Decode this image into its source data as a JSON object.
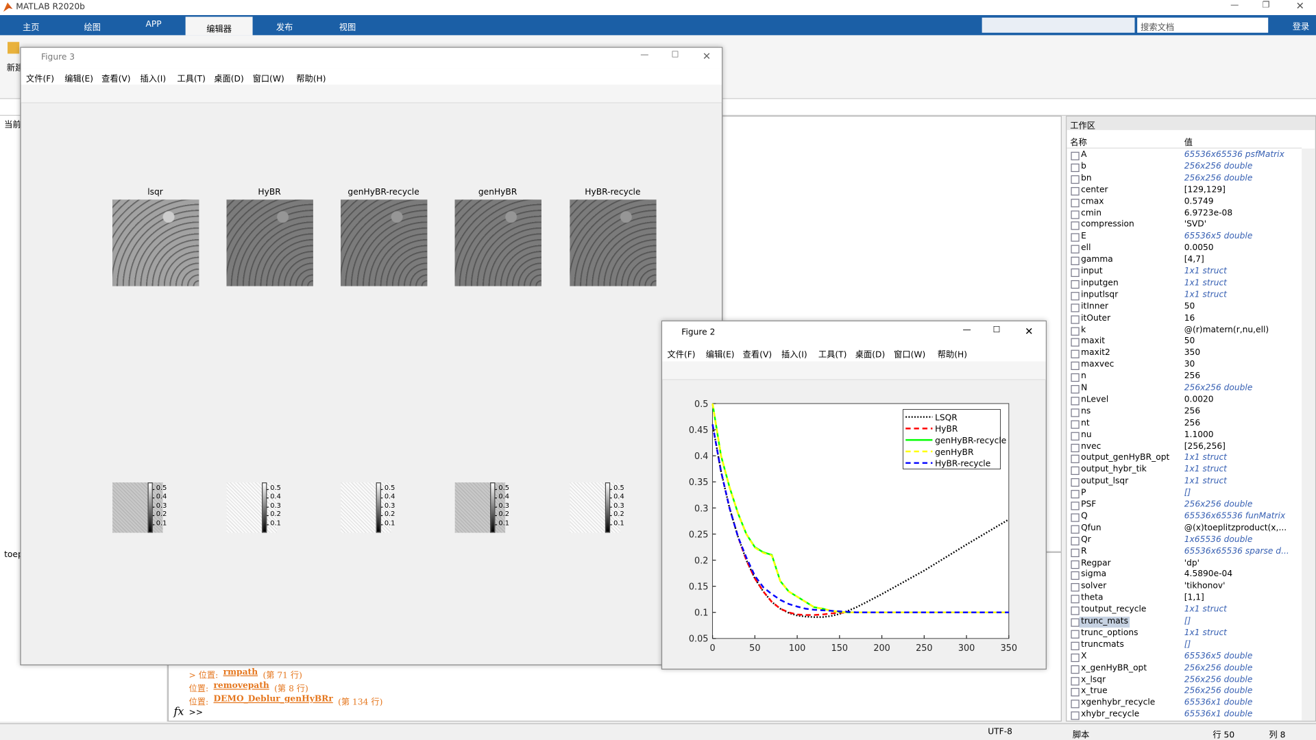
{
  "app_title": "MATLAB R2020b",
  "ribbon_tabs": [
    "主页",
    "绘图",
    "APP",
    "编辑器",
    "发布",
    "视图"
  ],
  "active_tab": 3,
  "ribbon_new": "新建",
  "search_placeholder": "搜索文档",
  "login": "登录",
  "left_panel": {
    "label": "当前",
    "file": "toep"
  },
  "command_window": {
    "lines": [
      {
        "prefix": "> 位置:",
        "link": "rmpath",
        "suffix": "(第 71 行)"
      },
      {
        "prefix": "位置:",
        "link": "removepath",
        "suffix": "(第 8 行)"
      },
      {
        "prefix": "位置:",
        "link": "DEMO_Deblur_genHyBRr",
        "suffix": "(第 134 行)"
      }
    ],
    "fx": "fx",
    "prompt": ">>"
  },
  "workspace": {
    "title": "工作区",
    "col_name": "名称",
    "col_value": "值",
    "selected_index": 40,
    "rows": [
      {
        "name": "A",
        "value": "65536x65536 psfMatrix",
        "link": true
      },
      {
        "name": "b",
        "value": "256x256 double",
        "link": true
      },
      {
        "name": "bn",
        "value": "256x256 double",
        "link": true
      },
      {
        "name": "center",
        "value": "[129,129]"
      },
      {
        "name": "cmax",
        "value": "0.5749"
      },
      {
        "name": "cmin",
        "value": "6.9723e-08"
      },
      {
        "name": "compression",
        "value": "'SVD'"
      },
      {
        "name": "E",
        "value": "65536x5 double",
        "link": true
      },
      {
        "name": "ell",
        "value": "0.0050"
      },
      {
        "name": "gamma",
        "value": "[4,7]"
      },
      {
        "name": "input",
        "value": "1x1 struct",
        "link": true
      },
      {
        "name": "inputgen",
        "value": "1x1 struct",
        "link": true
      },
      {
        "name": "inputlsqr",
        "value": "1x1 struct",
        "link": true
      },
      {
        "name": "itInner",
        "value": "50"
      },
      {
        "name": "itOuter",
        "value": "16"
      },
      {
        "name": "k",
        "value": "@(r)matern(r,nu,ell)"
      },
      {
        "name": "maxit",
        "value": "50"
      },
      {
        "name": "maxit2",
        "value": "350"
      },
      {
        "name": "maxvec",
        "value": "30"
      },
      {
        "name": "n",
        "value": "256"
      },
      {
        "name": "N",
        "value": "256x256 double",
        "link": true
      },
      {
        "name": "nLevel",
        "value": "0.0020"
      },
      {
        "name": "ns",
        "value": "256"
      },
      {
        "name": "nt",
        "value": "256"
      },
      {
        "name": "nu",
        "value": "1.1000"
      },
      {
        "name": "nvec",
        "value": "[256,256]"
      },
      {
        "name": "output_genHyBR_opt",
        "value": "1x1 struct",
        "link": true
      },
      {
        "name": "output_hybr_tik",
        "value": "1x1 struct",
        "link": true
      },
      {
        "name": "output_lsqr",
        "value": "1x1 struct",
        "link": true
      },
      {
        "name": "P",
        "value": "[]",
        "link": true
      },
      {
        "name": "PSF",
        "value": "256x256 double",
        "link": true
      },
      {
        "name": "Q",
        "value": "65536x65536 funMatrix",
        "link": true
      },
      {
        "name": "Qfun",
        "value": "@(x)toeplitzproduct(x,..."
      },
      {
        "name": "Qr",
        "value": "1x65536 double",
        "link": true
      },
      {
        "name": "R",
        "value": "65536x65536 sparse d...",
        "link": true
      },
      {
        "name": "Regpar",
        "value": "'dp'"
      },
      {
        "name": "sigma",
        "value": "4.5890e-04"
      },
      {
        "name": "solver",
        "value": "'tikhonov'"
      },
      {
        "name": "theta",
        "value": "[1,1]"
      },
      {
        "name": "toutput_recycle",
        "value": "1x1 struct",
        "link": true
      },
      {
        "name": "trunc_mats",
        "value": "[]",
        "link": true
      },
      {
        "name": "trunc_options",
        "value": "1x1 struct",
        "link": true
      },
      {
        "name": "truncmats",
        "value": "[]",
        "link": true
      },
      {
        "name": "X",
        "value": "65536x5 double",
        "link": true
      },
      {
        "name": "x_genHyBR_opt",
        "value": "256x256 double",
        "link": true
      },
      {
        "name": "x_lsqr",
        "value": "256x256 double",
        "link": true
      },
      {
        "name": "x_true",
        "value": "256x256 double",
        "link": true
      },
      {
        "name": "xgenhybr_recycle",
        "value": "65536x1 double",
        "link": true
      },
      {
        "name": "xhybr_recycle",
        "value": "65536x1 double",
        "link": true
      }
    ]
  },
  "status_bar": {
    "encoding": "UTF-8",
    "file_type": "脚本",
    "line": "行 50",
    "col": "列 8"
  },
  "figure_menu": [
    "文件(F)",
    "编辑(E)",
    "查看(V)",
    "插入(I)",
    "工具(T)",
    "桌面(D)",
    "窗口(W)",
    "帮助(H)"
  ],
  "figure3": {
    "title": "Figure 3",
    "subplot_titles": [
      "lsqr",
      "HyBR",
      "genHyBR-recycle",
      "genHyBR",
      "HyBR-recycle"
    ],
    "colorbar_lim": [
      0,
      0.575
    ],
    "colorbar_ticks": [
      0.5,
      0.4,
      0.3,
      0.2,
      0.1
    ]
  },
  "figure2": {
    "title": "Figure 2"
  },
  "chart_data": {
    "type": "line",
    "x": [
      0,
      10,
      20,
      30,
      40,
      50,
      60,
      70,
      80,
      90,
      100,
      110,
      120,
      130,
      140,
      150,
      160,
      170,
      180,
      200,
      250,
      300,
      350
    ],
    "series": [
      {
        "name": "LSQR",
        "color": "#000000",
        "linestyle": "dotted",
        "values": [
          0.46,
          0.37,
          0.3,
          0.245,
          0.2,
          0.165,
          0.14,
          0.12,
          0.107,
          0.099,
          0.094,
          0.092,
          0.091,
          0.091,
          0.093,
          0.097,
          0.103,
          0.11,
          0.118,
          0.135,
          0.18,
          0.23,
          0.278
        ]
      },
      {
        "name": "HyBR",
        "color": "#ff0000",
        "linestyle": "dashed",
        "values": [
          0.46,
          0.37,
          0.3,
          0.245,
          0.2,
          0.165,
          0.14,
          0.12,
          0.107,
          0.1,
          0.096,
          0.095,
          0.095,
          0.096,
          0.098,
          0.099,
          0.1,
          0.1,
          0.1,
          0.1,
          0.1,
          0.1,
          0.1
        ]
      },
      {
        "name": "genHyBR-recycle",
        "color": "#00ff00",
        "linestyle": "solid",
        "values": [
          0.5,
          0.4,
          0.34,
          0.29,
          0.25,
          0.225,
          0.215,
          0.21,
          0.16,
          0.14,
          0.13,
          0.12,
          0.11,
          0.107,
          0.103,
          0.101,
          0.1,
          0.1,
          0.1,
          0.1,
          0.1,
          0.1,
          0.1
        ]
      },
      {
        "name": "genHyBR",
        "color": "#ffff00",
        "linestyle": "dashed",
        "values": [
          0.5,
          0.4,
          0.34,
          0.29,
          0.25,
          0.224,
          0.214,
          0.209,
          0.16,
          0.14,
          0.13,
          0.12,
          0.11,
          0.107,
          0.103,
          0.101,
          0.1,
          0.1,
          0.1,
          0.1,
          0.1,
          0.1,
          0.1
        ]
      },
      {
        "name": "HyBR-recycle",
        "color": "#0000ff",
        "linestyle": "dashed",
        "values": [
          0.46,
          0.37,
          0.3,
          0.245,
          0.205,
          0.17,
          0.148,
          0.135,
          0.124,
          0.116,
          0.111,
          0.107,
          0.105,
          0.104,
          0.103,
          0.102,
          0.101,
          0.1,
          0.1,
          0.1,
          0.1,
          0.1,
          0.1
        ]
      }
    ],
    "xlim": [
      0,
      350
    ],
    "ylim": [
      0.05,
      0.5
    ],
    "xticks": [
      0,
      50,
      100,
      150,
      200,
      250,
      300,
      350
    ],
    "yticks": [
      0.05,
      0.1,
      0.15,
      0.2,
      0.25,
      0.3,
      0.35,
      0.4,
      0.45,
      0.5
    ],
    "legend": "upper right"
  }
}
